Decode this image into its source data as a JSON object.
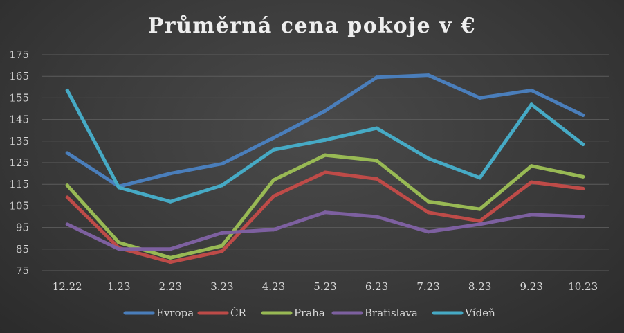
{
  "chart_data": {
    "type": "line",
    "title": "Průměrná cena pokoje v €",
    "xlabel": "",
    "ylabel": "",
    "ylim": [
      75,
      175
    ],
    "yticks": [
      75,
      85,
      95,
      105,
      115,
      125,
      135,
      145,
      155,
      165,
      175
    ],
    "categories": [
      "12.22",
      "1.23",
      "2.23",
      "3.23",
      "4.23",
      "5.23",
      "6.23",
      "7.23",
      "8.23",
      "9.23",
      "10.23"
    ],
    "grid": true,
    "legend_position": "bottom",
    "series": [
      {
        "name": "Evropa",
        "color": "#4a7ebb",
        "values": [
          129.5,
          114,
          120,
          124.5,
          136.5,
          149,
          164.5,
          165.5,
          155,
          158.5,
          147
        ]
      },
      {
        "name": "ČR",
        "color": "#be4b48",
        "values": [
          109,
          85.5,
          79,
          84,
          109.5,
          120.5,
          117.5,
          102,
          98,
          116,
          113
        ]
      },
      {
        "name": "Praha",
        "color": "#98b954",
        "values": [
          114.5,
          88,
          81,
          86.5,
          117,
          128.5,
          126,
          107,
          103.5,
          123.5,
          118.5
        ]
      },
      {
        "name": "Bratislava",
        "color": "#7d60a0",
        "values": [
          96.5,
          85,
          85,
          92.5,
          94,
          102,
          100,
          93,
          96.5,
          101,
          100
        ]
      },
      {
        "name": "Vídeň",
        "color": "#46aac5",
        "values": [
          158.5,
          113.5,
          107,
          114.5,
          131,
          135.5,
          141,
          127,
          118,
          152,
          133.5
        ]
      }
    ]
  }
}
